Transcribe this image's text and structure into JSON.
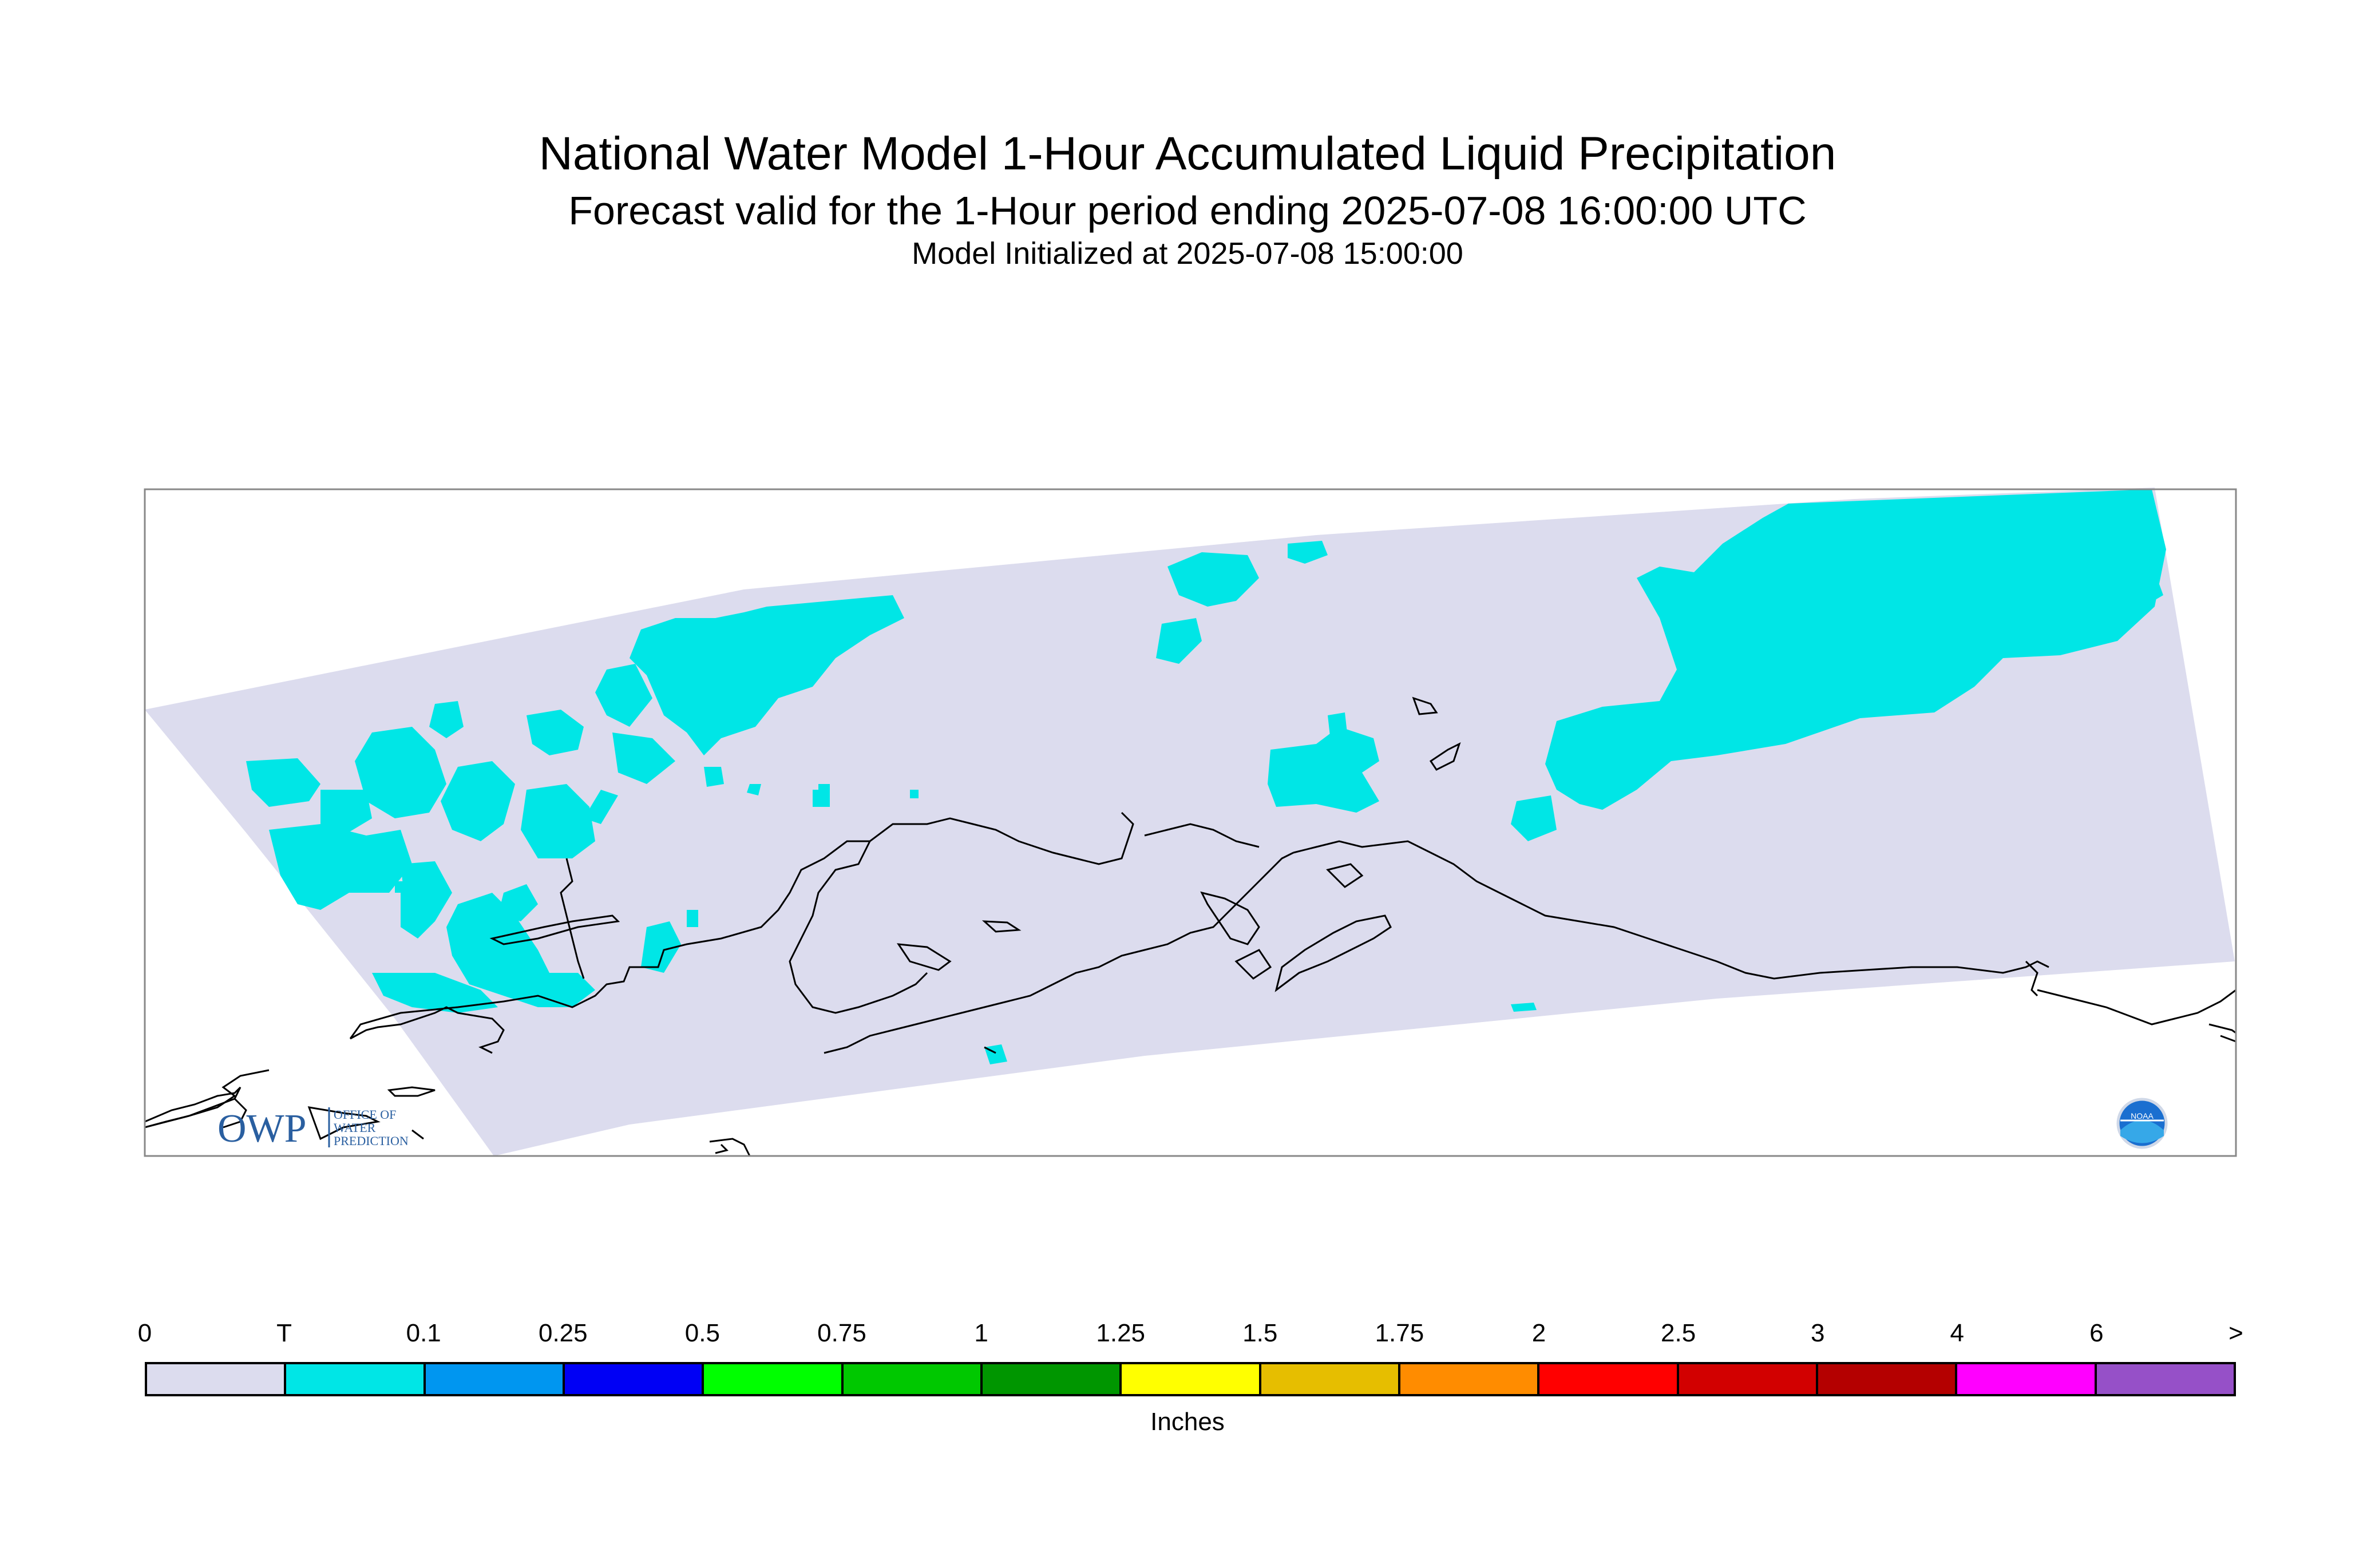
{
  "title": "National Water Model 1-Hour Accumulated Liquid Precipitation",
  "subtitle": "Forecast valid for the 1-Hour period ending 2025-07-08 16:00:00 UTC",
  "init_line": "Model Initialized at 2025-07-08 15:00:00",
  "logo": {
    "owp_text": "OWP",
    "owp_sub": [
      "OFFICE OF",
      "WATER",
      "PREDICTION"
    ],
    "noaa_text": "NOAA"
  },
  "legend": {
    "units": "Inches",
    "labels": [
      "0",
      "T",
      "0.1",
      "0.25",
      "0.5",
      "0.75",
      "1",
      "1.25",
      "1.5",
      "1.75",
      "2",
      "2.5",
      "3",
      "4",
      "6",
      ">"
    ],
    "colors": [
      "#dcdcee",
      "#00e6e6",
      "#0096f0",
      "#0000f5",
      "#00ff00",
      "#00c800",
      "#009600",
      "#ffff00",
      "#e6be00",
      "#ff8c00",
      "#ff0000",
      "#d20000",
      "#b40000",
      "#ff00ff",
      "#9650c8"
    ]
  },
  "colors": {
    "domain": "#dcdcee",
    "trace_precip": "#00e6e6",
    "frame": "#888888",
    "coastline": "#000000"
  }
}
